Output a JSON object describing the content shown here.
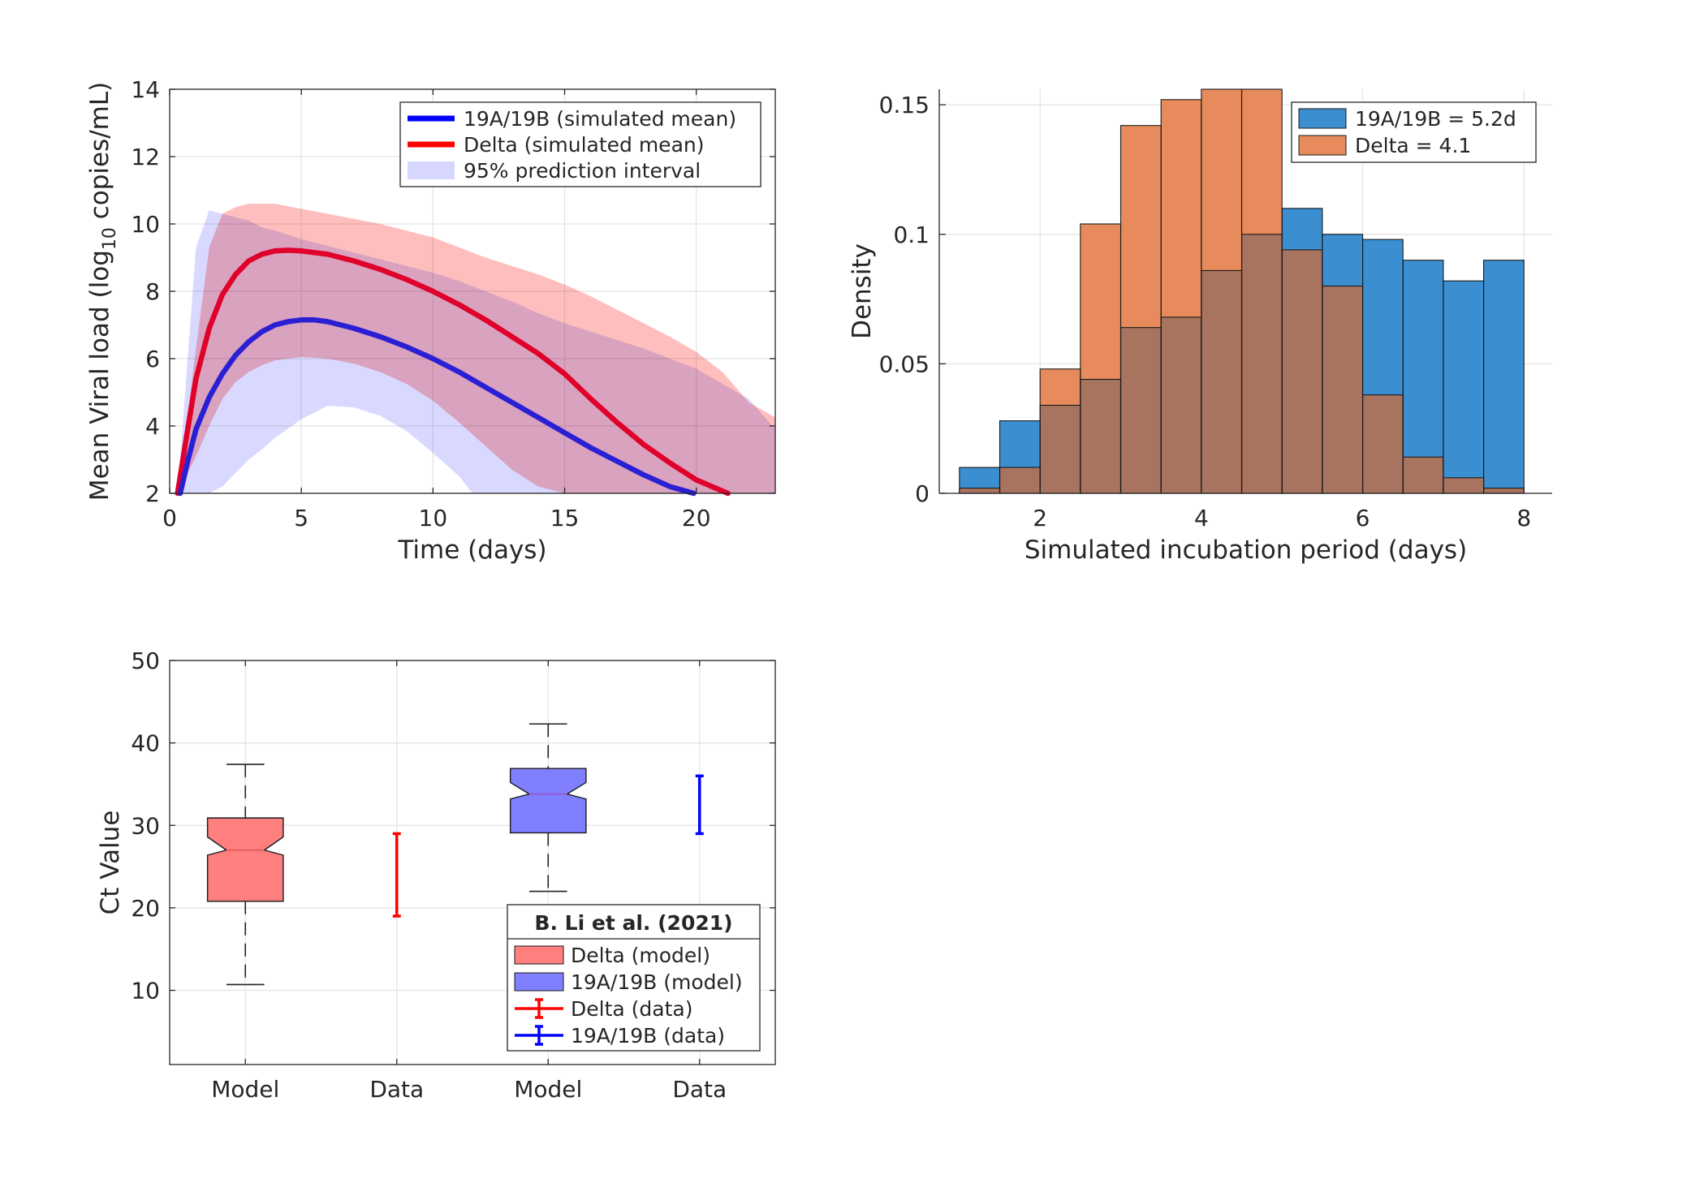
{
  "chart_data": [
    {
      "type": "line",
      "xlabel": "Time (days)",
      "ylabel_parts": [
        "Mean Viral load (log",
        "10",
        " copies/mL)"
      ],
      "xlim": [
        0,
        23
      ],
      "ylim": [
        2,
        14
      ],
      "xticks": [
        0,
        5,
        10,
        15,
        20
      ],
      "yticks": [
        2,
        4,
        6,
        8,
        10,
        12,
        14
      ],
      "grid": true,
      "legend_position": "top-right",
      "series": [
        {
          "name": "19A/19B (simulated mean)",
          "color": "#0000ff",
          "kind": "line",
          "x": [
            0.4,
            0.7,
            1,
            1.5,
            2,
            2.5,
            3,
            3.5,
            4,
            4.5,
            5,
            5.5,
            6,
            7,
            8,
            9,
            10,
            11,
            12,
            13,
            14,
            15,
            16,
            17,
            18,
            19,
            19.9
          ],
          "y": [
            2.0,
            3.0,
            3.9,
            4.85,
            5.55,
            6.1,
            6.5,
            6.8,
            7.0,
            7.1,
            7.15,
            7.15,
            7.1,
            6.9,
            6.65,
            6.35,
            6.0,
            5.6,
            5.15,
            4.7,
            4.25,
            3.8,
            3.35,
            2.95,
            2.55,
            2.2,
            2.0
          ]
        },
        {
          "name": "Delta (simulated mean)",
          "color": "#ff0000",
          "kind": "line",
          "x": [
            0.3,
            0.6,
            1,
            1.5,
            2,
            2.5,
            3,
            3.5,
            4,
            4.5,
            5,
            6,
            7,
            8,
            9,
            10,
            11,
            12,
            13,
            14,
            15,
            16,
            17,
            18,
            19,
            20,
            21.2
          ],
          "y": [
            2.0,
            3.5,
            5.4,
            6.9,
            7.9,
            8.5,
            8.9,
            9.1,
            9.2,
            9.22,
            9.2,
            9.1,
            8.9,
            8.65,
            8.35,
            8.0,
            7.6,
            7.15,
            6.65,
            6.15,
            5.55,
            4.8,
            4.1,
            3.45,
            2.9,
            2.4,
            2.0
          ]
        },
        {
          "name": "95% prediction interval",
          "color": "#ccccff",
          "kind": "band",
          "x": [
            0.3,
            1,
            1.5,
            2,
            2.5,
            3,
            3.5,
            4,
            5,
            6,
            7,
            8,
            9,
            10,
            11,
            11.5,
            12,
            13,
            14,
            15,
            15.4,
            16,
            18,
            20,
            22,
            23
          ],
          "lower": [
            2,
            2,
            2,
            2.2,
            2.6,
            3.0,
            3.3,
            3.65,
            4.2,
            4.6,
            4.55,
            4.3,
            3.85,
            3.2,
            2.5,
            2,
            2,
            2,
            2,
            2,
            2,
            2,
            2,
            2,
            2,
            2
          ],
          "upper": [
            2,
            9.3,
            10.4,
            10.3,
            10.2,
            10.1,
            9.9,
            9.8,
            9.55,
            9.35,
            9.15,
            8.95,
            8.75,
            8.55,
            8.3,
            8.15,
            8.0,
            7.7,
            7.35,
            7.05,
            6.95,
            6.8,
            6.3,
            5.7,
            4.8,
            3.9
          ]
        },
        {
          "name": "",
          "color": "#ffb3b3",
          "kind": "band",
          "x": [
            0.3,
            1,
            1.5,
            2,
            2.5,
            3,
            3.5,
            4,
            5,
            6,
            7,
            8,
            9,
            10,
            11,
            12,
            13,
            14,
            15,
            16,
            17,
            18,
            19,
            20,
            21,
            22,
            23
          ],
          "lower": [
            2,
            3.1,
            4.0,
            4.8,
            5.3,
            5.6,
            5.8,
            5.95,
            6.05,
            6.0,
            5.85,
            5.6,
            5.25,
            4.75,
            4.1,
            3.4,
            2.7,
            2.2,
            2.0,
            2,
            2,
            2,
            2,
            2,
            2,
            2,
            2
          ],
          "upper": [
            2,
            6.3,
            9.3,
            10.3,
            10.5,
            10.6,
            10.6,
            10.6,
            10.45,
            10.3,
            10.15,
            10.0,
            9.8,
            9.6,
            9.3,
            9.0,
            8.75,
            8.5,
            8.2,
            7.85,
            7.45,
            7.05,
            6.65,
            6.2,
            5.6,
            4.7,
            4.25
          ]
        }
      ]
    },
    {
      "type": "bar",
      "subtype": "histogram",
      "xlabel": "Simulated incubation period (days)",
      "ylabel": "Density",
      "xlim": [
        0.75,
        8.35
      ],
      "ylim": [
        0,
        0.156
      ],
      "xticks": [
        2,
        4,
        6,
        8
      ],
      "yticks": [
        0,
        0.05,
        0.1,
        0.15
      ],
      "ytick_labels": [
        "0",
        "0.05",
        "0.1",
        "0.15"
      ],
      "grid": true,
      "legend_position": "top-right",
      "bin_edges": [
        1.0,
        1.5,
        2.0,
        2.5,
        3.0,
        3.5,
        4.0,
        4.5,
        5.0,
        5.5,
        6.0,
        6.5,
        7.0,
        7.5,
        8.0
      ],
      "series": [
        {
          "name": "19A/19B = 5.2d",
          "color": "#3b8fd0",
          "values": [
            0.01,
            0.028,
            0.034,
            0.044,
            0.064,
            0.068,
            0.086,
            0.1,
            0.11,
            0.1,
            0.098,
            0.09,
            0.082,
            0.09
          ]
        },
        {
          "name": "Delta = 4.1",
          "color": "#e88b5c",
          "values": [
            0.002,
            0.01,
            0.048,
            0.104,
            0.142,
            0.152,
            0.156,
            0.156,
            0.094,
            0.08,
            0.038,
            0.014,
            0.006,
            0.002
          ]
        }
      ]
    },
    {
      "type": "box",
      "ylabel": "Ct Value",
      "ylim": [
        1,
        50
      ],
      "yticks": [
        10,
        20,
        30,
        40,
        50
      ],
      "categories": [
        "Model",
        "Data",
        "Model",
        "Data"
      ],
      "grid": true,
      "legend_title": "B. Li et al. (2021)",
      "legend_position": "bottom-right",
      "boxes": [
        {
          "name": "Delta (model)",
          "position": 1,
          "color": "#ff7f7f",
          "whisker_low": 10.7,
          "q1": 20.8,
          "median": 27.0,
          "q3": 30.9,
          "whisker_high": 37.4,
          "notch_low": 26.4,
          "notch_high": 28.6
        },
        {
          "name": "19A/19B (model)",
          "position": 3,
          "color": "#7f7fff",
          "whisker_low": 22.0,
          "q1": 29.1,
          "median": 33.8,
          "q3": 36.9,
          "whisker_high": 42.3,
          "notch_low": 33.2,
          "notch_high": 35.2
        }
      ],
      "errorbars": [
        {
          "name": "Delta (data)",
          "position": 2,
          "color": "#ff0000",
          "low": 19.0,
          "high": 29.0
        },
        {
          "name": "19A/19B (data)",
          "position": 4,
          "color": "#0000ff",
          "low": 29.0,
          "high": 36.0
        }
      ]
    }
  ]
}
